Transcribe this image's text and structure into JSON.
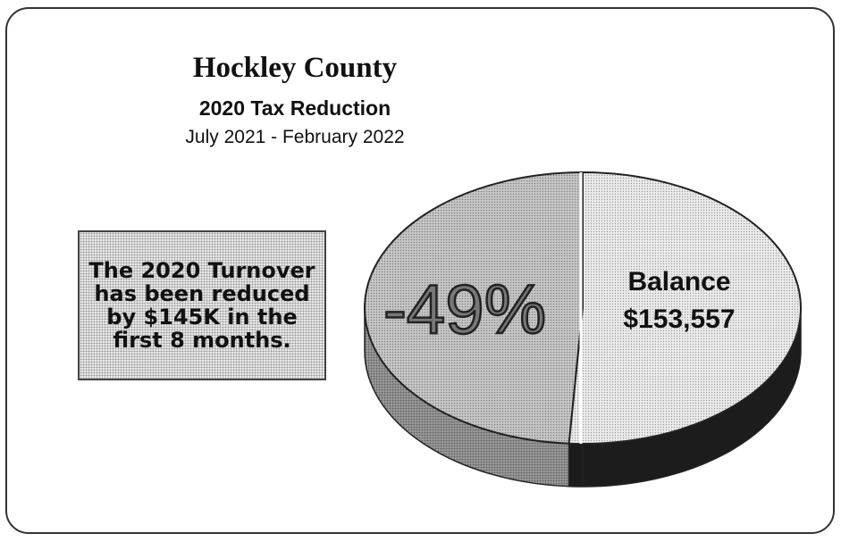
{
  "chart_data": {
    "type": "pie",
    "title": "Hockley County",
    "subtitle": "2020 Tax Reduction",
    "date_range": "July 2021 - February 2022",
    "slices": [
      {
        "label": "-49%",
        "percent": 49,
        "color": "#bdbdbd",
        "side_color": "#8c8c8c"
      },
      {
        "label_lines": [
          "Balance",
          "$153,557"
        ],
        "percent": 51,
        "color": "#e2e2e2",
        "side_color": "#1c1c1c"
      }
    ]
  },
  "callout": {
    "text": "The 2020 Turnover has been reduced by $145K in the first 8 months."
  }
}
